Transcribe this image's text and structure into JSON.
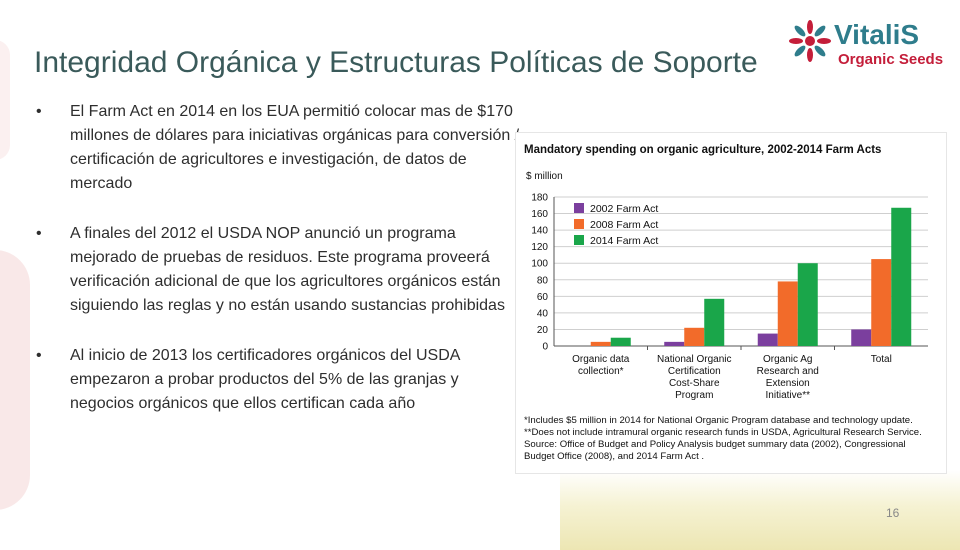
{
  "slide": {
    "title": "Integridad Orgánica y Estructuras Políticas de Soporte",
    "page_number": "16",
    "bullets": [
      "El Farm Act  en 2014 en los EUA  permitió colocar mas de $170 millones de dólares  para iniciativas orgánicas para conversión / certificación  de agricultores  e  investigación,  de datos de mercado",
      "A finales del 2012 el  USDA NOP anunció  un programa mejorado de pruebas de residuos. Este programa proveerá verificación adicional de que los agricultores orgánicos están siguiendo las reglas y no están usando sustancias prohibidas",
      "Al inicio de 2013 los certificadores  orgánicos del USDA empezaron a probar productos del 5% de las granjas y negocios orgánicos que ellos certifican cada año"
    ]
  },
  "logo": {
    "name": "VitaliS",
    "tagline": "Organic Seeds",
    "colors": {
      "name": "#2f7d8c",
      "tagline": "#c41e3a"
    }
  },
  "chart_data": {
    "type": "bar",
    "title": "Mandatory spending on organic agriculture, 2002-2014 Farm Acts",
    "ylabel": "$ million",
    "ylim": [
      0,
      180
    ],
    "yticks": [
      0,
      20,
      40,
      60,
      80,
      100,
      120,
      140,
      160,
      180
    ],
    "grid": true,
    "legend_position": "top-left",
    "categories": [
      [
        "Organic data",
        "collection*"
      ],
      [
        "National Organic",
        "Certification",
        "Cost-Share",
        "Program"
      ],
      [
        "Organic Ag",
        "Research and",
        "Extension",
        "Initiative**"
      ],
      [
        "Total"
      ]
    ],
    "series": [
      {
        "name": "2002 Farm Act",
        "color": "#7b3f9e",
        "values": [
          0,
          5,
          15,
          20
        ]
      },
      {
        "name": "2008 Farm Act",
        "color": "#f26b2a",
        "values": [
          5,
          22,
          78,
          105
        ]
      },
      {
        "name": "2014 Farm Act",
        "color": "#1aa64a",
        "values": [
          10,
          57,
          100,
          167
        ]
      }
    ],
    "footnotes": [
      "*Includes $5 million in 2014 for National Organic Program database and technology update.",
      "**Does not include intramural organic research funds in USDA, Agricultural Research Service.",
      "Source:  Office of Budget and Policy Analysis budget summary data (2002), Congressional",
      "Budget Office (2008), and 2014 Farm Act ."
    ]
  }
}
